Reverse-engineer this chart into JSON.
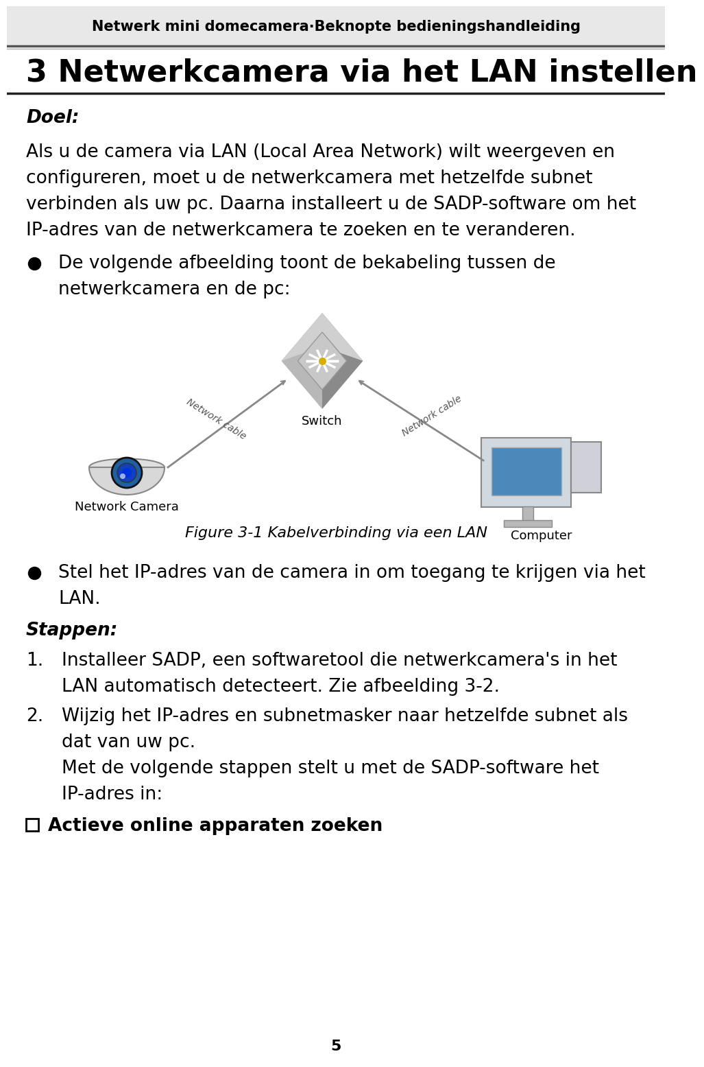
{
  "header_text": "Netwerk mini domecamera·Beknopte bedieningshandleiding",
  "title": "3 Netwerkcamera via het LAN instellen",
  "header_bg": "#e8e8e8",
  "bg_color": "#ffffff",
  "text_color": "#000000",
  "page_number": "5",
  "header_fontsize": 15,
  "title_fontsize": 32,
  "body_fontsize": 19,
  "caption_fontsize": 16,
  "small_diagram_fontsize": 13,
  "para_lines": [
    "Als u de camera via LAN (Local Area Network) wilt weergeven en",
    "configureren, moet u de netwerkcamera met hetzelfde subnet",
    "verbinden als uw pc. Daarna installeert u de SADP-software om het",
    "IP-adres van de netwerkcamera te zoeken en te veranderen."
  ],
  "bullet1_lines": [
    "De volgende afbeelding toont de bekabeling tussen de",
    "netwerkcamera en de pc:"
  ],
  "diagram_caption": "Figure 3-1 Kabelverbinding via een LAN",
  "bullet2_lines": [
    "Stel het IP-adres van de camera in om toegang te krijgen via het",
    "LAN."
  ],
  "stappen_label": "Stappen:",
  "step1_lines": [
    "Installeer SADP, een softwaretool die netwerkcamera's in het",
    "LAN automatisch detecteert. Zie afbeelding 3-2."
  ],
  "step2_lines": [
    "Wijzig het IP-adres en subnetmasker naar hetzelfde subnet als",
    "dat van uw pc.",
    "Met de volgende stappen stelt u met de SADP-software het",
    "IP-adres in:"
  ],
  "checkbox_text": "Actieve online apparaten zoeken"
}
